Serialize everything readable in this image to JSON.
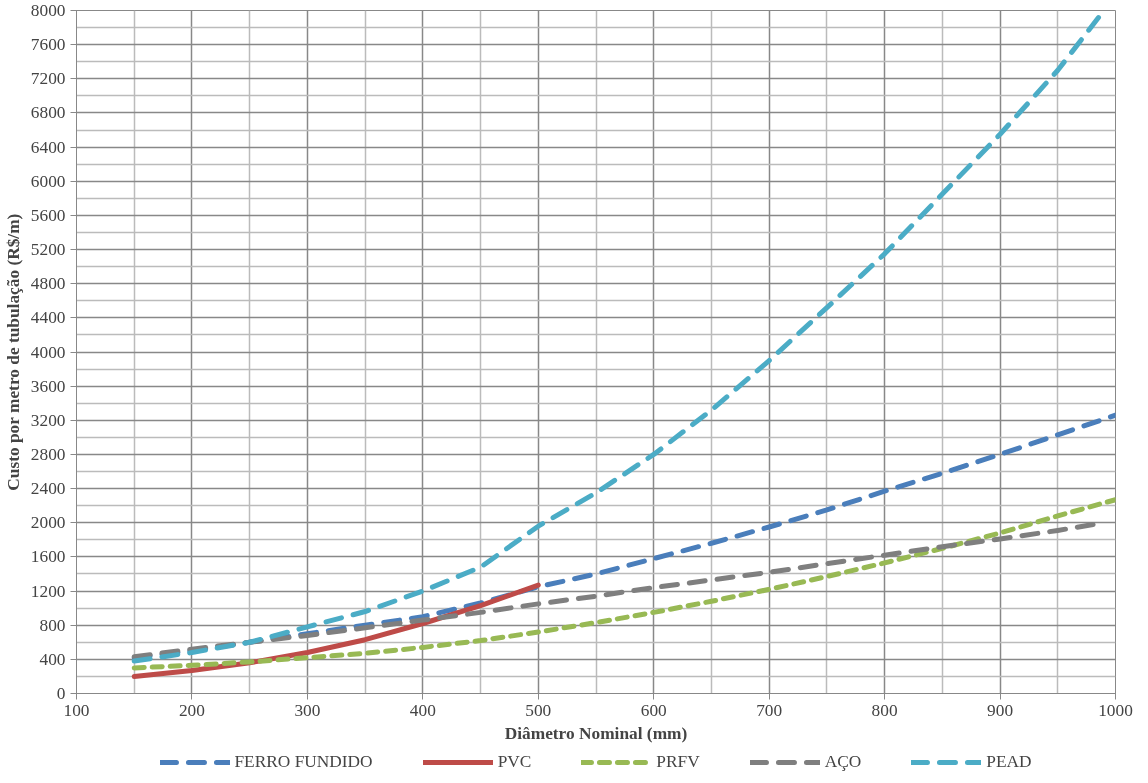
{
  "chart_data": {
    "type": "line",
    "xlabel": "Diâmetro Nominal (mm)",
    "ylabel": "Custo por metro de tubulação (R$/m)",
    "x": [
      150,
      200,
      250,
      300,
      350,
      400,
      450,
      500,
      550,
      600,
      650,
      700,
      750,
      800,
      850,
      900,
      950,
      1000
    ],
    "series": [
      {
        "name": "FERRO FUNDIDO",
        "color": "#4a7ebb",
        "line_style": "dashed",
        "values": [
          420,
          500,
          600,
          700,
          800,
          900,
          1060,
          1250,
          1400,
          1580,
          1760,
          1950,
          2150,
          2370,
          2580,
          2800,
          3030,
          3260
        ]
      },
      {
        "name": "PVC",
        "color": "#be4b48",
        "line_style": "solid",
        "x": [
          150,
          200,
          250,
          300,
          350,
          400,
          450,
          500
        ],
        "values": [
          200,
          270,
          360,
          480,
          630,
          820,
          1030,
          1270
        ]
      },
      {
        "name": "PRFV",
        "color": "#98b954",
        "line_style": "dotted",
        "values": [
          300,
          330,
          370,
          420,
          470,
          540,
          620,
          720,
          830,
          950,
          1080,
          1220,
          1370,
          1530,
          1700,
          1880,
          2080,
          2270
        ]
      },
      {
        "name": "AÇO",
        "color": "#7f7f7f",
        "line_style": "dashed",
        "x": [
          150,
          200,
          250,
          300,
          350,
          400,
          450,
          500,
          550,
          600,
          650,
          700,
          750,
          800,
          850,
          900,
          950,
          990
        ],
        "values": [
          430,
          520,
          600,
          680,
          770,
          860,
          950,
          1050,
          1140,
          1240,
          1330,
          1420,
          1520,
          1620,
          1720,
          1810,
          1910,
          2000
        ]
      },
      {
        "name": "PEAD",
        "color": "#4bacc6",
        "line_style": "dashed",
        "x": [
          150,
          200,
          250,
          300,
          350,
          400,
          450,
          500,
          550,
          600,
          650,
          700,
          750,
          800,
          850,
          900,
          950,
          990
        ],
        "values": [
          380,
          480,
          600,
          780,
          960,
          1200,
          1480,
          1960,
          2350,
          2800,
          3320,
          3900,
          4520,
          5150,
          5850,
          6550,
          7300,
          8000
        ]
      }
    ],
    "xlim": [
      100,
      1000
    ],
    "xticks": [
      100,
      200,
      300,
      400,
      500,
      600,
      700,
      800,
      900,
      1000
    ],
    "ylim": [
      0,
      8000
    ],
    "yticks": [
      0,
      400,
      800,
      1200,
      1600,
      2000,
      2400,
      2800,
      3200,
      3600,
      4000,
      4400,
      4800,
      5200,
      5600,
      6000,
      6400,
      6800,
      7200,
      7600,
      8000
    ],
    "grid": true,
    "legend": "bottom",
    "marker": "none"
  }
}
